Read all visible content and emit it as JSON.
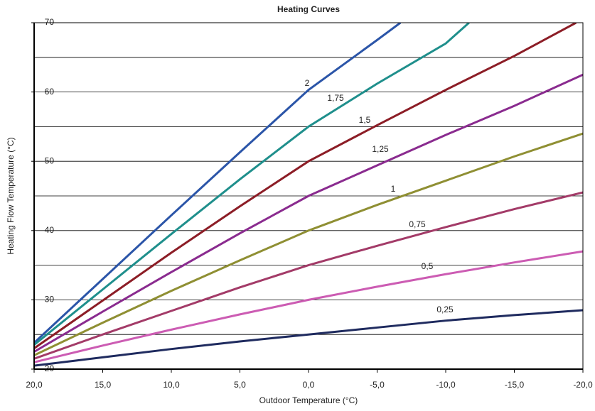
{
  "chart_data": {
    "type": "line",
    "title": "Heating Curves",
    "x_label": "Outdoor Temperature (°C)",
    "y_label": "Heating Flow Temperature (°C)",
    "xlim": [
      20,
      -20
    ],
    "ylim": [
      20,
      70
    ],
    "xticks": [
      {
        "value": 20,
        "label": "20,0"
      },
      {
        "value": 15,
        "label": "15,0"
      },
      {
        "value": 10,
        "label": "10,0"
      },
      {
        "value": 5,
        "label": "5,0"
      },
      {
        "value": 0,
        "label": "0,0"
      },
      {
        "value": -5,
        "label": "-5,0"
      },
      {
        "value": -10,
        "label": "-10,0"
      },
      {
        "value": -15,
        "label": "-15,0"
      },
      {
        "value": -20,
        "label": "-20,0"
      }
    ],
    "yticks": [
      20,
      30,
      40,
      50,
      60,
      70
    ],
    "ygrid": [
      20,
      25,
      30,
      35,
      40,
      45,
      50,
      55,
      60,
      65,
      70
    ],
    "grid": true,
    "series": [
      {
        "name": "2",
        "color": "#2b55a8",
        "x": [
          20,
          15,
          10,
          5,
          0,
          -5,
          -6.7
        ],
        "values": [
          23.8,
          33,
          42.2,
          51.3,
          60.3,
          67.5,
          70
        ]
      },
      {
        "name": "1,75",
        "color": "#1f8f8c",
        "x": [
          20,
          15,
          10,
          5,
          0,
          -5,
          -10,
          -11.7
        ],
        "values": [
          23.5,
          31.5,
          39.5,
          47.4,
          55,
          61.2,
          67,
          70
        ]
      },
      {
        "name": "1,5",
        "color": "#8c1d26",
        "x": [
          20,
          15,
          10,
          5,
          0,
          -5,
          -10,
          -15,
          -19.5
        ],
        "values": [
          23,
          29.9,
          36.8,
          43.5,
          50,
          55.2,
          60.3,
          65.2,
          70
        ]
      },
      {
        "name": "1,25",
        "color": "#8a2b8f",
        "x": [
          20,
          15,
          10,
          5,
          0,
          -5,
          -10,
          -15,
          -20
        ],
        "values": [
          22.5,
          28.3,
          34,
          39.6,
          45,
          49.4,
          53.8,
          58,
          62.5
        ]
      },
      {
        "name": "1",
        "color": "#8f8f33",
        "x": [
          20,
          15,
          10,
          5,
          0,
          -5,
          -10,
          -15,
          -20
        ],
        "values": [
          22,
          26.7,
          31.3,
          35.7,
          40,
          43.7,
          47.2,
          50.7,
          54
        ]
      },
      {
        "name": "0,75",
        "color": "#a33b68",
        "x": [
          20,
          15,
          10,
          5,
          0,
          -5,
          -10,
          -15,
          -20
        ],
        "values": [
          21.5,
          25,
          28.4,
          31.8,
          35,
          37.8,
          40.5,
          43.1,
          45.5
        ]
      },
      {
        "name": "0,5",
        "color": "#cc5cb3",
        "x": [
          20,
          15,
          10,
          5,
          0,
          -5,
          -10,
          -15,
          -20
        ],
        "values": [
          21,
          23.4,
          25.7,
          27.9,
          30,
          31.9,
          33.7,
          35.4,
          37
        ]
      },
      {
        "name": "0,25",
        "color": "#1f2b5f",
        "x": [
          20,
          15,
          10,
          5,
          0,
          -5,
          -10,
          -15,
          -20
        ],
        "values": [
          20.5,
          21.7,
          22.9,
          24,
          25,
          26,
          27,
          27.8,
          28.5
        ]
      }
    ]
  }
}
